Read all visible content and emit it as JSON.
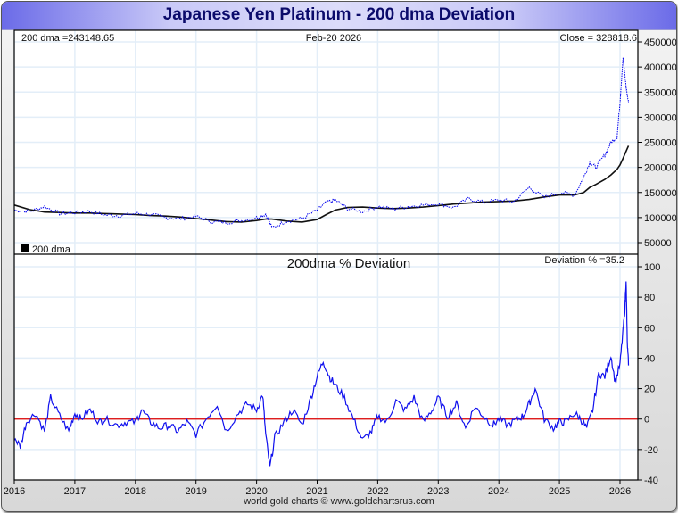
{
  "window": {
    "title": "Japanese Yen Platinum - 200 dma Deviation",
    "footer": "world gold charts © www.goldchartsrus.com"
  },
  "colors": {
    "price": "#0000ee",
    "dma": "#111111",
    "deviation": "#1010ee",
    "zero_line": "#dd0000",
    "grid": "#e3eef8"
  },
  "chart_data": [
    {
      "type": "line",
      "panel": "upper",
      "header_left": "200 dma =243148.65",
      "header_center": "Feb-20  2026",
      "header_right": "Close = 328818.6",
      "legend": "200 dma",
      "legend_placement": "bottom-left",
      "y_ticks": [
        "450000",
        "400000",
        "350000",
        "300000",
        "250000",
        "200000",
        "150000",
        "100000",
        "50000"
      ],
      "ylim": [
        30000,
        480000
      ],
      "x": [
        2016.0,
        2016.25,
        2016.5,
        2016.75,
        2017.0,
        2017.25,
        2017.5,
        2017.75,
        2018.0,
        2018.25,
        2018.5,
        2018.75,
        2019.0,
        2019.25,
        2019.5,
        2019.75,
        2020.0,
        2020.15,
        2020.25,
        2020.5,
        2020.75,
        2021.0,
        2021.15,
        2021.3,
        2021.5,
        2021.75,
        2022.0,
        2022.25,
        2022.5,
        2022.75,
        2023.0,
        2023.25,
        2023.5,
        2023.75,
        2024.0,
        2024.25,
        2024.5,
        2024.75,
        2025.0,
        2025.25,
        2025.4,
        2025.5,
        2025.6,
        2025.75,
        2025.85,
        2025.95,
        2026.0,
        2026.05,
        2026.1,
        2026.14
      ],
      "series": [
        {
          "name": "Close",
          "values": [
            115000,
            112000,
            122000,
            108000,
            110000,
            112000,
            105000,
            104000,
            108000,
            106000,
            100000,
            98000,
            102000,
            92000,
            90000,
            94000,
            100000,
            107000,
            80000,
            93000,
            98000,
            115000,
            130000,
            135000,
            118000,
            112000,
            122000,
            117000,
            122000,
            125000,
            128000,
            120000,
            138000,
            130000,
            135000,
            132000,
            160000,
            140000,
            150000,
            145000,
            180000,
            210000,
            200000,
            225000,
            250000,
            260000,
            330000,
            420000,
            360000,
            328818
          ]
        },
        {
          "name": "200 dma",
          "values": [
            125000,
            116000,
            111000,
            110000,
            109000,
            109000,
            108000,
            107000,
            106000,
            104000,
            103000,
            101000,
            98000,
            95000,
            92000,
            91000,
            94000,
            97000,
            97000,
            93000,
            91000,
            96000,
            106000,
            115000,
            120000,
            121000,
            119000,
            118000,
            119000,
            121000,
            124000,
            127000,
            129000,
            131000,
            132000,
            133000,
            136000,
            141000,
            145000,
            145000,
            150000,
            160000,
            166000,
            176000,
            185000,
            196000,
            205000,
            218000,
            232000,
            243148
          ]
        }
      ]
    },
    {
      "type": "line",
      "panel": "lower",
      "title": "200dma  %  Deviation",
      "header_right": "Deviation % =35.2",
      "y_ticks": [
        "100",
        "80",
        "60",
        "40",
        "20",
        "0",
        "-20",
        "-40"
      ],
      "ylim": [
        -40,
        108
      ],
      "xlabel_ticks": [
        "2016",
        "2017",
        "2018",
        "2019",
        "2020",
        "2021",
        "2022",
        "2023",
        "2024",
        "2025",
        "2026"
      ],
      "x": [
        2016.0,
        2016.1,
        2016.2,
        2016.35,
        2016.5,
        2016.6,
        2016.75,
        2016.9,
        2017.0,
        2017.1,
        2017.25,
        2017.4,
        2017.5,
        2017.7,
        2017.85,
        2018.0,
        2018.1,
        2018.25,
        2018.4,
        2018.55,
        2018.7,
        2018.85,
        2019.0,
        2019.2,
        2019.35,
        2019.5,
        2019.7,
        2019.85,
        2020.0,
        2020.1,
        2020.15,
        2020.22,
        2020.3,
        2020.45,
        2020.6,
        2020.75,
        2020.9,
        2021.0,
        2021.1,
        2021.2,
        2021.3,
        2021.45,
        2021.6,
        2021.75,
        2021.9,
        2022.0,
        2022.15,
        2022.3,
        2022.45,
        2022.6,
        2022.75,
        2022.9,
        2023.0,
        2023.15,
        2023.3,
        2023.45,
        2023.6,
        2023.75,
        2023.9,
        2024.0,
        2024.15,
        2024.3,
        2024.4,
        2024.5,
        2024.6,
        2024.75,
        2024.9,
        2025.0,
        2025.1,
        2025.25,
        2025.35,
        2025.45,
        2025.55,
        2025.65,
        2025.75,
        2025.85,
        2025.92,
        2026.0,
        2026.05,
        2026.08,
        2026.1,
        2026.12,
        2026.14
      ],
      "series": [
        {
          "name": "Deviation %",
          "values": [
            -12,
            -18,
            -2,
            4,
            -8,
            14,
            2,
            -8,
            4,
            0,
            6,
            -2,
            0,
            -4,
            -2,
            -2,
            6,
            -2,
            -6,
            -4,
            -8,
            -2,
            -10,
            2,
            10,
            -8,
            4,
            10,
            6,
            16,
            -10,
            -32,
            -12,
            -2,
            6,
            -4,
            14,
            28,
            38,
            28,
            22,
            14,
            0,
            -14,
            -8,
            2,
            -2,
            12,
            6,
            14,
            -2,
            6,
            14,
            2,
            10,
            -6,
            8,
            2,
            -4,
            0,
            -4,
            0,
            2,
            10,
            20,
            0,
            -6,
            -2,
            -2,
            4,
            0,
            -6,
            6,
            30,
            28,
            42,
            24,
            36,
            58,
            72,
            92,
            50,
            35.2
          ]
        }
      ]
    }
  ]
}
